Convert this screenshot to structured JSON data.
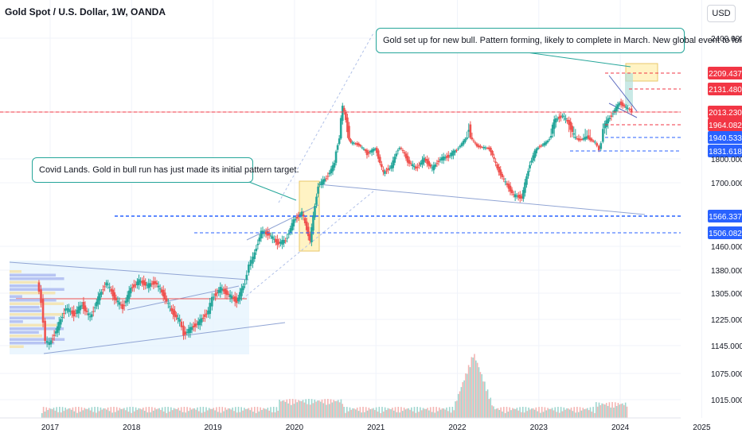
{
  "header": {
    "title": "Gold Spot / U.S. Dollar, 1W, OANDA",
    "currency_button": "USD"
  },
  "annotations": {
    "note_2024": "Gold set up for new bull. Pattern forming, likely to complete in March. New global event to follow??",
    "note_covid": "Covid Lands. Gold in bull run has just made its initial pattern target."
  },
  "colors": {
    "up": "#26a69a",
    "down": "#ef5350",
    "blue_label": "#2962ff",
    "red_label": "#f23645",
    "zone": "#e3f2fd",
    "highlight": "#fff3c4",
    "grid": "#f0f3fa",
    "axis_text": "#131722"
  },
  "chart_data": {
    "type": "candlestick",
    "title": "Gold Spot / U.S. Dollar, 1W, OANDA",
    "x_ticks": [
      "2017",
      "2018",
      "2019",
      "2020",
      "2021",
      "2022",
      "2023",
      "2024",
      "2025"
    ],
    "y_ticks": [
      "2400.000",
      "1800.000",
      "1700.000",
      "1460.000",
      "1380.000",
      "1305.000",
      "1225.000",
      "1145.000",
      "1075.000",
      "1015.000"
    ],
    "price_labels": [
      {
        "value": "2209.437",
        "style": "red"
      },
      {
        "value": "2131.480",
        "style": "red"
      },
      {
        "value": "2013.230",
        "style": "red"
      },
      {
        "value": "1964.082",
        "style": "red"
      },
      {
        "value": "1940.533",
        "style": "blue"
      },
      {
        "value": "1831.618",
        "style": "blue"
      },
      {
        "value": "1566.337",
        "style": "blue"
      },
      {
        "value": "1506.082",
        "style": "blue"
      }
    ],
    "price_path": [
      [
        2016.85,
        1340
      ],
      [
        2016.9,
        1280
      ],
      [
        2016.95,
        1160
      ],
      [
        2017.0,
        1150
      ],
      [
        2017.1,
        1200
      ],
      [
        2017.2,
        1260
      ],
      [
        2017.3,
        1240
      ],
      [
        2017.4,
        1270
      ],
      [
        2017.5,
        1230
      ],
      [
        2017.6,
        1290
      ],
      [
        2017.7,
        1340
      ],
      [
        2017.8,
        1290
      ],
      [
        2017.9,
        1260
      ],
      [
        2018.0,
        1320
      ],
      [
        2018.1,
        1345
      ],
      [
        2018.2,
        1330
      ],
      [
        2018.3,
        1340
      ],
      [
        2018.4,
        1300
      ],
      [
        2018.5,
        1250
      ],
      [
        2018.6,
        1220
      ],
      [
        2018.65,
        1180
      ],
      [
        2018.75,
        1200
      ],
      [
        2018.85,
        1220
      ],
      [
        2018.95,
        1250
      ],
      [
        2019.0,
        1290
      ],
      [
        2019.1,
        1320
      ],
      [
        2019.2,
        1300
      ],
      [
        2019.3,
        1280
      ],
      [
        2019.4,
        1340
      ],
      [
        2019.45,
        1400
      ],
      [
        2019.5,
        1420
      ],
      [
        2019.6,
        1510
      ],
      [
        2019.7,
        1500
      ],
      [
        2019.8,
        1470
      ],
      [
        2019.9,
        1480
      ],
      [
        2020.0,
        1550
      ],
      [
        2020.1,
        1580
      ],
      [
        2020.2,
        1480
      ],
      [
        2020.3,
        1690
      ],
      [
        2020.4,
        1720
      ],
      [
        2020.5,
        1780
      ],
      [
        2020.6,
        2040
      ],
      [
        2020.7,
        1900
      ],
      [
        2020.8,
        1880
      ],
      [
        2020.9,
        1820
      ],
      [
        2021.0,
        1850
      ],
      [
        2021.1,
        1740
      ],
      [
        2021.2,
        1770
      ],
      [
        2021.3,
        1860
      ],
      [
        2021.4,
        1790
      ],
      [
        2021.5,
        1760
      ],
      [
        2021.6,
        1800
      ],
      [
        2021.7,
        1760
      ],
      [
        2021.8,
        1800
      ],
      [
        2021.9,
        1810
      ],
      [
        2022.0,
        1840
      ],
      [
        2022.15,
        1960
      ],
      [
        2022.25,
        1870
      ],
      [
        2022.4,
        1850
      ],
      [
        2022.5,
        1760
      ],
      [
        2022.6,
        1700
      ],
      [
        2022.7,
        1650
      ],
      [
        2022.8,
        1640
      ],
      [
        2022.9,
        1780
      ],
      [
        2023.0,
        1860
      ],
      [
        2023.1,
        1900
      ],
      [
        2023.2,
        1980
      ],
      [
        2023.3,
        2000
      ],
      [
        2023.4,
        1960
      ],
      [
        2023.5,
        1920
      ],
      [
        2023.6,
        1940
      ],
      [
        2023.7,
        1900
      ],
      [
        2023.75,
        1840
      ],
      [
        2023.8,
        1960
      ],
      [
        2023.9,
        2000
      ],
      [
        2024.0,
        2060
      ],
      [
        2024.1,
        2030
      ],
      [
        2024.15,
        2020
      ]
    ],
    "volume_peak_year": 2022.2,
    "x_range": [
      2016.5,
      2025.0
    ],
    "notes": [
      "Gold set up for new bull. Pattern forming, likely to complete in March. New global event to follow??",
      "Covid Lands. Gold in bull run has just made its initial pattern target."
    ]
  }
}
